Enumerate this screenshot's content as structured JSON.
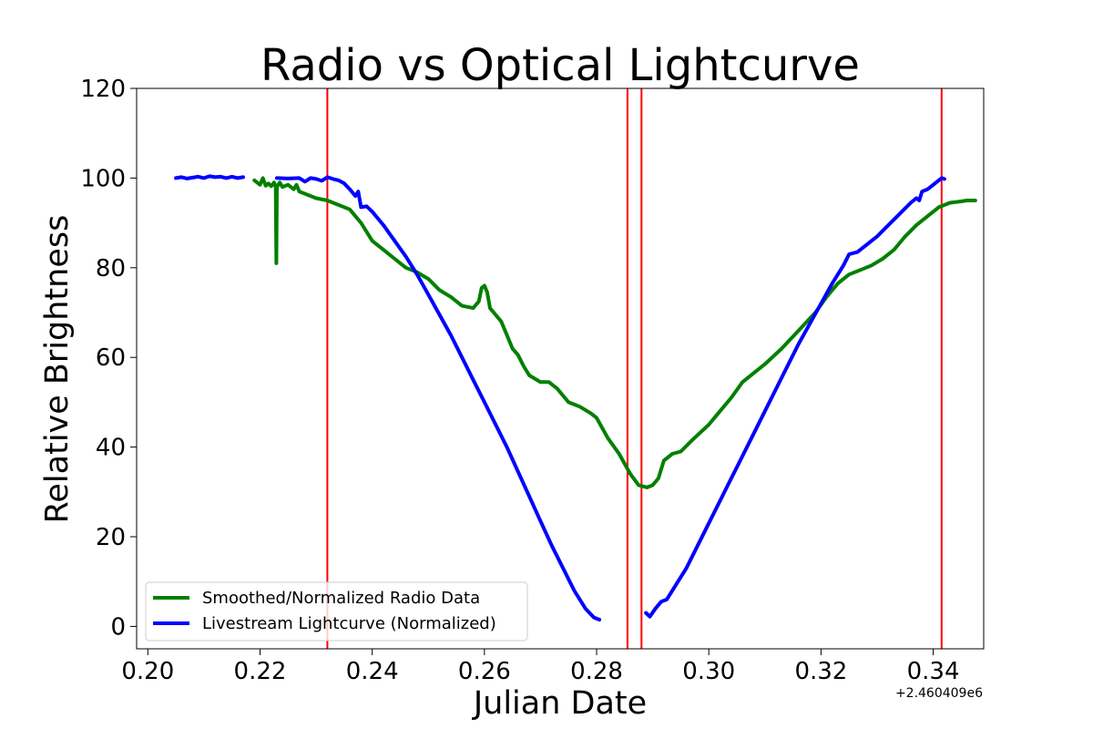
{
  "chart_data": {
    "type": "line",
    "title": "Radio vs Optical Lightcurve",
    "xlabel": "Julian Date",
    "ylabel": "Relative Brightness",
    "x_offset_label": "+2.460409e6",
    "xlim": [
      0.198,
      0.349
    ],
    "ylim": [
      -5,
      120
    ],
    "xticks": [
      0.2,
      0.22,
      0.24,
      0.26,
      0.28,
      0.3,
      0.32,
      0.34
    ],
    "xtick_labels": [
      "0.20",
      "0.22",
      "0.24",
      "0.26",
      "0.28",
      "0.30",
      "0.32",
      "0.34"
    ],
    "yticks": [
      0,
      20,
      40,
      60,
      80,
      100,
      120
    ],
    "ytick_labels": [
      "0",
      "20",
      "40",
      "60",
      "80",
      "100",
      "120"
    ],
    "grid": false,
    "legend": "lower-left",
    "vertical_lines": {
      "color": "#ff0000",
      "x": [
        0.232,
        0.2855,
        0.288,
        0.3415
      ]
    },
    "series": [
      {
        "name": "Smoothed/Normalized Radio Data",
        "color": "#008000",
        "segments": [
          [
            [
              0.219,
              99.5
            ],
            [
              0.22,
              98.5
            ],
            [
              0.2205,
              100.0
            ],
            [
              0.221,
              98.3
            ],
            [
              0.2215,
              98.8
            ],
            [
              0.222,
              98.2
            ],
            [
              0.2225,
              99.0
            ],
            [
              0.2228,
              98.0
            ],
            [
              0.2229,
              81.0
            ],
            [
              0.223,
              98.0
            ],
            [
              0.2235,
              99.0
            ],
            [
              0.224,
              98.0
            ],
            [
              0.225,
              98.5
            ],
            [
              0.226,
              97.5
            ],
            [
              0.2265,
              98.5
            ],
            [
              0.227,
              97.0
            ],
            [
              0.228,
              96.5
            ],
            [
              0.23,
              95.5
            ],
            [
              0.232,
              95.0
            ],
            [
              0.234,
              94.0
            ],
            [
              0.236,
              93.0
            ],
            [
              0.237,
              91.5
            ],
            [
              0.238,
              90.0
            ],
            [
              0.239,
              88.0
            ],
            [
              0.24,
              86.0
            ],
            [
              0.242,
              84.0
            ],
            [
              0.244,
              82.0
            ],
            [
              0.245,
              81.0
            ],
            [
              0.246,
              80.0
            ],
            [
              0.248,
              79.0
            ],
            [
              0.25,
              77.5
            ],
            [
              0.252,
              75.0
            ],
            [
              0.254,
              73.5
            ],
            [
              0.256,
              71.5
            ],
            [
              0.258,
              71.0
            ],
            [
              0.259,
              72.5
            ],
            [
              0.2595,
              75.5
            ],
            [
              0.26,
              76.0
            ],
            [
              0.2605,
              74.5
            ],
            [
              0.261,
              71.0
            ],
            [
              0.262,
              69.5
            ],
            [
              0.263,
              68.0
            ],
            [
              0.264,
              65.0
            ],
            [
              0.265,
              62.0
            ],
            [
              0.266,
              60.5
            ],
            [
              0.267,
              58.0
            ],
            [
              0.268,
              56.0
            ],
            [
              0.27,
              54.5
            ],
            [
              0.2715,
              54.5
            ],
            [
              0.273,
              53.0
            ],
            [
              0.275,
              50.0
            ],
            [
              0.277,
              49.0
            ],
            [
              0.279,
              47.5
            ],
            [
              0.28,
              46.5
            ],
            [
              0.282,
              42.0
            ],
            [
              0.284,
              38.5
            ],
            [
              0.286,
              34.0
            ],
            [
              0.2875,
              31.5
            ],
            [
              0.289,
              31.0
            ],
            [
              0.29,
              31.5
            ],
            [
              0.291,
              33.0
            ],
            [
              0.292,
              37.0
            ],
            [
              0.2935,
              38.5
            ],
            [
              0.295,
              39.0
            ],
            [
              0.297,
              41.5
            ],
            [
              0.3,
              45.0
            ],
            [
              0.302,
              48.0
            ],
            [
              0.304,
              51.0
            ],
            [
              0.306,
              54.5
            ],
            [
              0.308,
              56.5
            ],
            [
              0.31,
              58.5
            ],
            [
              0.313,
              62.0
            ],
            [
              0.316,
              66.0
            ],
            [
              0.319,
              70.0
            ],
            [
              0.321,
              73.5
            ],
            [
              0.323,
              76.5
            ],
            [
              0.325,
              78.5
            ],
            [
              0.327,
              79.5
            ],
            [
              0.329,
              80.5
            ],
            [
              0.331,
              82.0
            ],
            [
              0.333,
              84.0
            ],
            [
              0.335,
              87.0
            ],
            [
              0.337,
              89.5
            ],
            [
              0.339,
              91.5
            ],
            [
              0.341,
              93.5
            ],
            [
              0.343,
              94.5
            ],
            [
              0.345,
              94.8
            ],
            [
              0.346,
              95.0
            ],
            [
              0.3475,
              95.0
            ]
          ]
        ]
      },
      {
        "name": "Livestream Lightcurve (Normalized)",
        "color": "#0000ff",
        "segments": [
          [
            [
              0.205,
              100.0
            ],
            [
              0.206,
              100.2
            ],
            [
              0.207,
              99.9
            ],
            [
              0.208,
              100.1
            ],
            [
              0.209,
              100.3
            ],
            [
              0.21,
              100.0
            ],
            [
              0.211,
              100.4
            ],
            [
              0.212,
              100.2
            ],
            [
              0.213,
              100.3
            ],
            [
              0.214,
              100.0
            ],
            [
              0.215,
              100.3
            ],
            [
              0.216,
              100.0
            ],
            [
              0.217,
              100.2
            ]
          ],
          [
            [
              0.223,
              100.0
            ],
            [
              0.225,
              99.9
            ],
            [
              0.227,
              100.0
            ],
            [
              0.228,
              99.2
            ],
            [
              0.229,
              100.0
            ],
            [
              0.23,
              99.8
            ],
            [
              0.231,
              99.4
            ],
            [
              0.232,
              100.2
            ],
            [
              0.233,
              99.8
            ],
            [
              0.234,
              99.5
            ],
            [
              0.235,
              98.8
            ],
            [
              0.236,
              97.5
            ],
            [
              0.237,
              96.0
            ],
            [
              0.2375,
              97.0
            ],
            [
              0.238,
              93.5
            ],
            [
              0.239,
              93.7
            ],
            [
              0.24,
              92.5
            ],
            [
              0.242,
              89.5
            ],
            [
              0.244,
              86.0
            ],
            [
              0.246,
              82.5
            ],
            [
              0.248,
              78.5
            ],
            [
              0.25,
              74.0
            ],
            [
              0.252,
              69.5
            ],
            [
              0.254,
              65.0
            ],
            [
              0.256,
              60.0
            ],
            [
              0.258,
              55.0
            ],
            [
              0.26,
              50.0
            ],
            [
              0.262,
              45.0
            ],
            [
              0.264,
              40.0
            ],
            [
              0.266,
              34.5
            ],
            [
              0.268,
              29.0
            ],
            [
              0.27,
              23.5
            ],
            [
              0.272,
              18.0
            ],
            [
              0.274,
              13.0
            ],
            [
              0.276,
              8.0
            ],
            [
              0.278,
              4.0
            ],
            [
              0.2795,
              2.0
            ],
            [
              0.2805,
              1.5
            ]
          ],
          [
            [
              0.2888,
              3.0
            ],
            [
              0.2895,
              2.2
            ],
            [
              0.2905,
              4.0
            ],
            [
              0.2915,
              5.5
            ],
            [
              0.2925,
              6.0
            ],
            [
              0.294,
              9.0
            ],
            [
              0.296,
              13.0
            ],
            [
              0.298,
              18.0
            ],
            [
              0.3,
              23.0
            ],
            [
              0.302,
              28.0
            ],
            [
              0.304,
              33.0
            ],
            [
              0.306,
              38.0
            ],
            [
              0.308,
              43.0
            ],
            [
              0.31,
              48.0
            ],
            [
              0.312,
              53.0
            ],
            [
              0.314,
              58.0
            ],
            [
              0.316,
              63.0
            ],
            [
              0.318,
              67.5
            ],
            [
              0.32,
              72.0
            ],
            [
              0.322,
              76.5
            ],
            [
              0.324,
              80.5
            ],
            [
              0.325,
              83.0
            ],
            [
              0.3265,
              83.5
            ],
            [
              0.328,
              85.0
            ],
            [
              0.33,
              87.0
            ],
            [
              0.332,
              89.5
            ],
            [
              0.334,
              92.0
            ],
            [
              0.336,
              94.5
            ],
            [
              0.337,
              95.5
            ],
            [
              0.3375,
              95.0
            ],
            [
              0.338,
              97.0
            ],
            [
              0.339,
              97.5
            ],
            [
              0.34,
              98.5
            ],
            [
              0.341,
              99.5
            ],
            [
              0.3415,
              100.0
            ],
            [
              0.342,
              99.8
            ]
          ]
        ]
      }
    ]
  }
}
